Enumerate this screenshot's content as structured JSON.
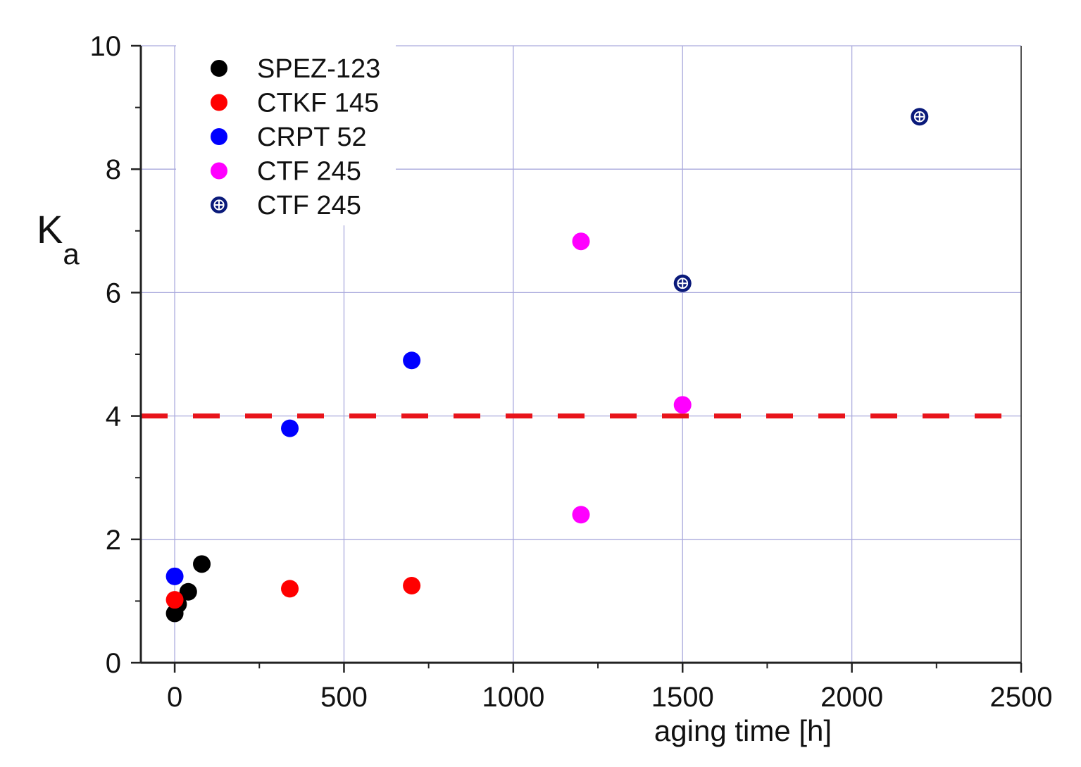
{
  "chart_data": {
    "type": "scatter",
    "title": "",
    "xlabel": "aging time [h]",
    "ylabel": "K",
    "ylabel_subscript": "a",
    "xlim": [
      -100,
      2500
    ],
    "ylim": [
      0,
      10
    ],
    "xticks": [
      0,
      500,
      1000,
      1500,
      2000,
      2500
    ],
    "yticks": [
      0,
      2,
      4,
      6,
      8,
      10
    ],
    "grid": true,
    "legend_position": "top-left",
    "threshold": {
      "y": 4,
      "color": "#e8141b",
      "style": "dashed"
    },
    "series": [
      {
        "name": "SPEZ-123",
        "color": "#000000",
        "marker": "filled-circle",
        "points": [
          [
            0,
            0.8
          ],
          [
            10,
            0.95
          ],
          [
            40,
            1.15
          ],
          [
            80,
            1.6
          ]
        ]
      },
      {
        "name": "CTKF 145",
        "color": "#ff0000",
        "marker": "filled-circle",
        "points": [
          [
            0,
            1.02
          ],
          [
            340,
            1.2
          ],
          [
            700,
            1.25
          ]
        ]
      },
      {
        "name": "CRPT 52",
        "color": "#0000ff",
        "marker": "filled-circle",
        "points": [
          [
            0,
            1.4
          ],
          [
            340,
            3.8
          ],
          [
            700,
            4.9
          ]
        ]
      },
      {
        "name": "CTF 245",
        "color": "#ff00ff",
        "marker": "filled-circle",
        "points": [
          [
            1200,
            6.83
          ],
          [
            1200,
            2.4
          ],
          [
            1500,
            4.18
          ]
        ]
      },
      {
        "name": "CTF 245",
        "color": "#0a1a7a",
        "marker": "crossed-circle",
        "points": [
          [
            1500,
            6.15
          ],
          [
            2200,
            8.85
          ]
        ]
      }
    ]
  }
}
